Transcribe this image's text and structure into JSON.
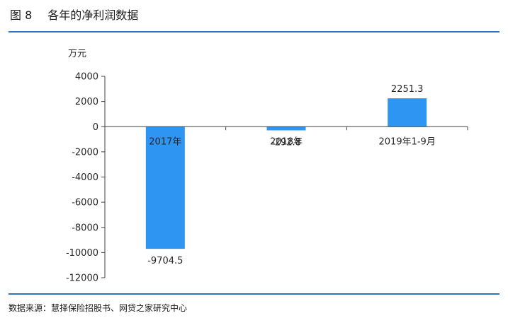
{
  "figure": {
    "number": "图 8",
    "title": "各年的净利润数据",
    "source": "数据来源：慧择保险招股书、网贷之家研究中心"
  },
  "chart_data": {
    "type": "bar",
    "title": "各年的净利润数据",
    "ylabel": "万元",
    "xlabel": "",
    "categories": [
      "2017年",
      "2018年",
      "2019年1-9月"
    ],
    "values": [
      -9704.5,
      -292.8,
      2251.3
    ],
    "value_labels": [
      "-9704.5",
      "-292.8",
      "2251.3"
    ],
    "ylim": [
      -12000,
      4000
    ],
    "yticks": [
      4000,
      2000,
      0,
      -2000,
      -4000,
      -6000,
      -8000,
      -10000,
      -12000
    ],
    "ytick_labels": [
      "4000",
      "2000",
      "0",
      "-2000",
      "-4000",
      "-6000",
      "-8000",
      "-10000",
      "-12000"
    ],
    "grid": false,
    "legend": "none",
    "bar_color": "#2e95f2",
    "axis_color": "#404040"
  }
}
